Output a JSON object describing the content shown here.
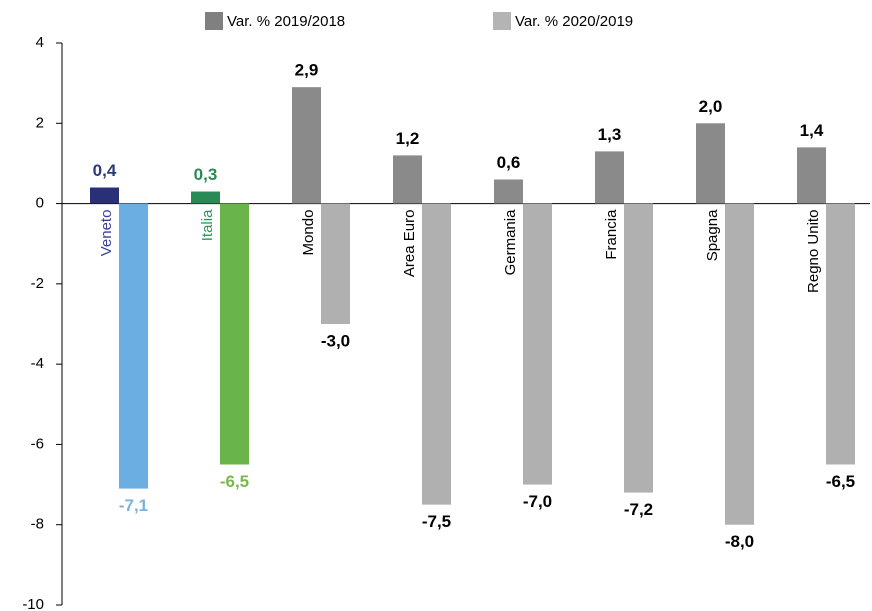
{
  "chart_data": {
    "type": "bar",
    "categories": [
      "Veneto",
      "Italia",
      "Mondo",
      "Area Euro",
      "Germania",
      "Francia",
      "Spagna",
      "Regno Unito"
    ],
    "category_colors": [
      "#3b3f96",
      "#2e9460",
      "#000000",
      "#000000",
      "#000000",
      "#000000",
      "#000000",
      "#000000"
    ],
    "series": [
      {
        "name": "Var. % 2019/2018",
        "color": "#808080",
        "colors": [
          "#2a3078",
          "#2a8a56",
          "#8a8a8a",
          "#8a8a8a",
          "#8a8a8a",
          "#8a8a8a",
          "#8a8a8a",
          "#8a8a8a"
        ],
        "label_colors": [
          "#2a3a7a",
          "#2a8a56",
          "#000000",
          "#000000",
          "#000000",
          "#000000",
          "#000000",
          "#000000"
        ],
        "values": [
          0.4,
          0.3,
          2.9,
          1.2,
          0.6,
          1.3,
          2.0,
          1.4
        ],
        "value_labels": [
          "0,4",
          "0,3",
          "2,9",
          "1,2",
          "0,6",
          "1,3",
          "2,0",
          "1,4"
        ]
      },
      {
        "name": "Var. % 2020/2019",
        "color": "#b4b4b4",
        "colors": [
          "#6aaee2",
          "#6ab54a",
          "#b0b0b0",
          "#b0b0b0",
          "#b0b0b0",
          "#b0b0b0",
          "#b0b0b0",
          "#b0b0b0"
        ],
        "label_colors": [
          "#7ab2e0",
          "#7ab84e",
          "#000000",
          "#000000",
          "#000000",
          "#000000",
          "#000000",
          "#000000"
        ],
        "values": [
          -7.1,
          -6.5,
          -3.0,
          -7.5,
          -7.0,
          -7.2,
          -8.0,
          -6.5
        ],
        "value_labels": [
          "-7,1",
          "-6,5",
          "-3,0",
          "-7,5",
          "-7,0",
          "-7,2",
          "-8,0",
          "-6,5"
        ]
      }
    ],
    "ylim": [
      -10,
      4
    ],
    "yticks": [
      -10,
      -8,
      -6,
      -4,
      -2,
      0,
      2,
      4
    ]
  }
}
